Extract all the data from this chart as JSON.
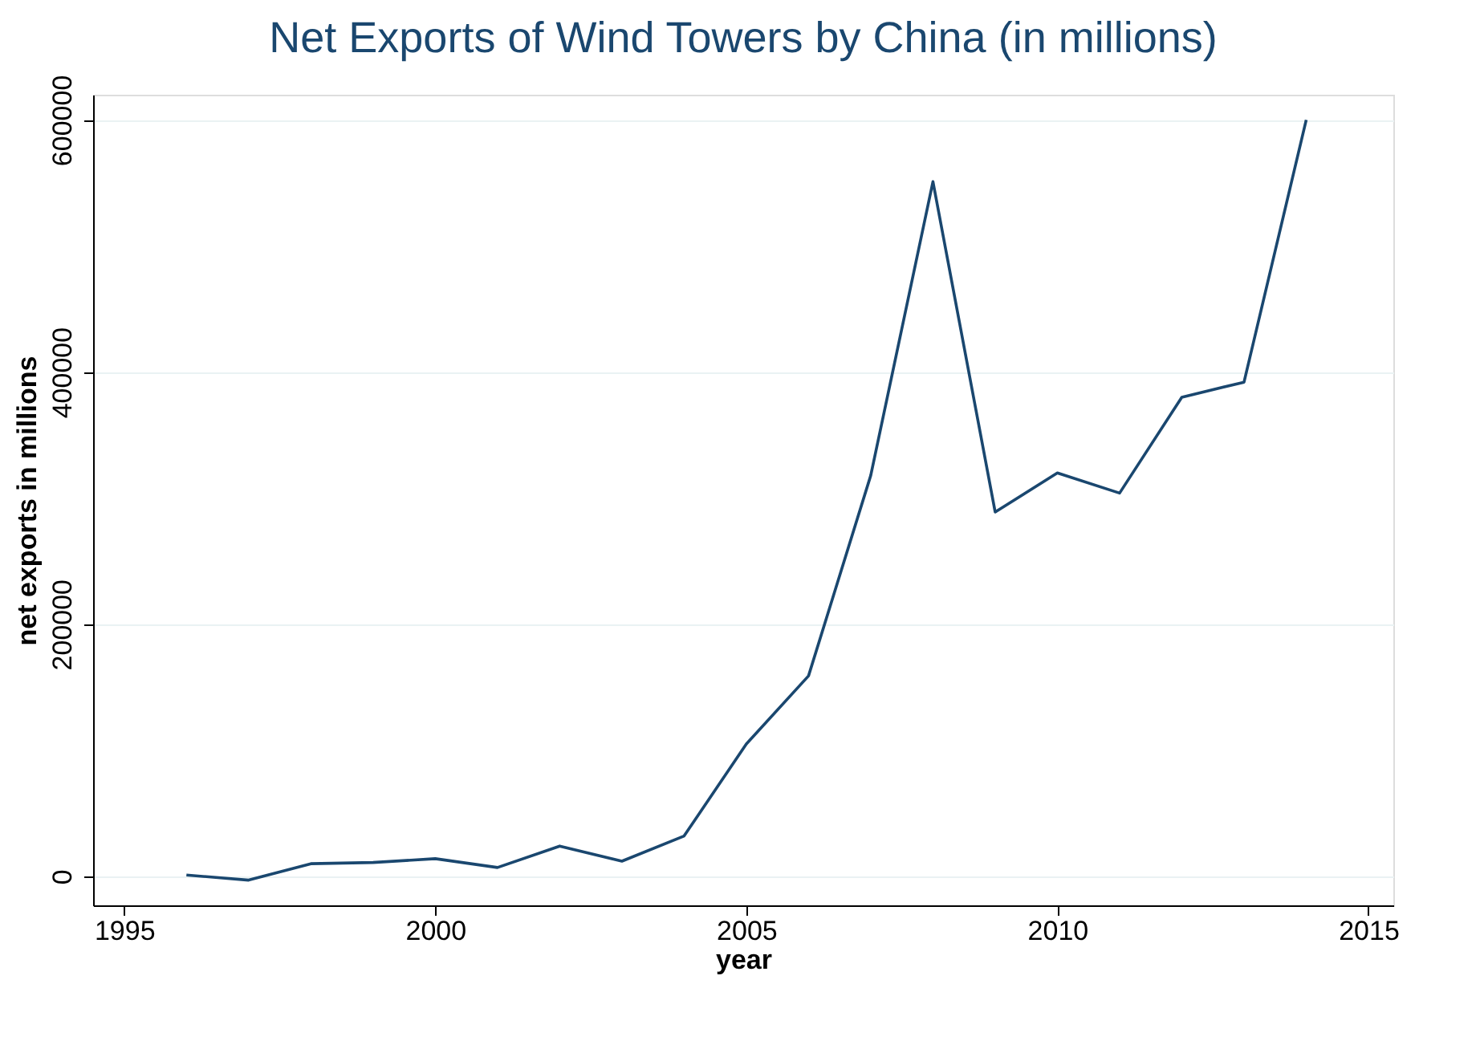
{
  "chart_data": {
    "type": "line",
    "title": "Net Exports of Wind Towers by China (in millions)",
    "xlabel": "year",
    "ylabel": "net exports in millions",
    "x": [
      1996,
      1997,
      1998,
      1999,
      2000,
      2001,
      2002,
      2003,
      2004,
      2005,
      2006,
      2007,
      2008,
      2009,
      2010,
      2011,
      2012,
      2013,
      2014
    ],
    "series": [
      {
        "color": "#1a476f",
        "values": [
          1000,
          -3000,
          10000,
          11000,
          14000,
          7000,
          24000,
          12000,
          32000,
          105000,
          159000,
          318000,
          551000,
          289000,
          320000,
          304000,
          380000,
          392000,
          600000
        ]
      }
    ],
    "xlim": [
      1994.5,
      2015.4
    ],
    "xticks": [
      1995,
      2000,
      2005,
      2010,
      2015
    ],
    "ylim": [
      -23000,
      620000
    ],
    "yticks": [
      0,
      200000,
      400000,
      600000
    ],
    "grid": "y",
    "legend": false,
    "marker": "none",
    "line_style": "solid"
  }
}
